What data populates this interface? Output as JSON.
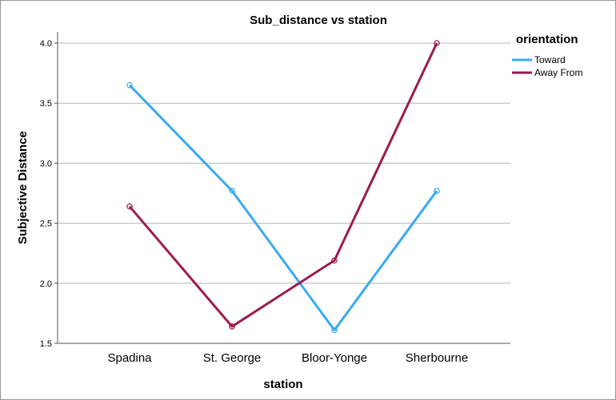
{
  "chart_data": {
    "type": "line",
    "title": "Sub_distance vs station",
    "xlabel": "station",
    "ylabel": "Subjective Distance",
    "categories": [
      "Spadina",
      "St. George",
      "Bloor-Yonge",
      "Sherbourne"
    ],
    "ylim": [
      1.5,
      4.0
    ],
    "yticks": [
      1.5,
      2.0,
      2.5,
      3.0,
      3.5,
      4.0
    ],
    "grid": true,
    "legend_title": "orientation",
    "legend_position": "right",
    "series": [
      {
        "name": "Toward",
        "color": "#3aaaf0",
        "values": [
          3.65,
          2.77,
          1.61,
          2.77
        ]
      },
      {
        "name": "Away From",
        "color": "#9b1b4f",
        "values": [
          2.64,
          1.64,
          2.19,
          4.0
        ]
      }
    ]
  }
}
